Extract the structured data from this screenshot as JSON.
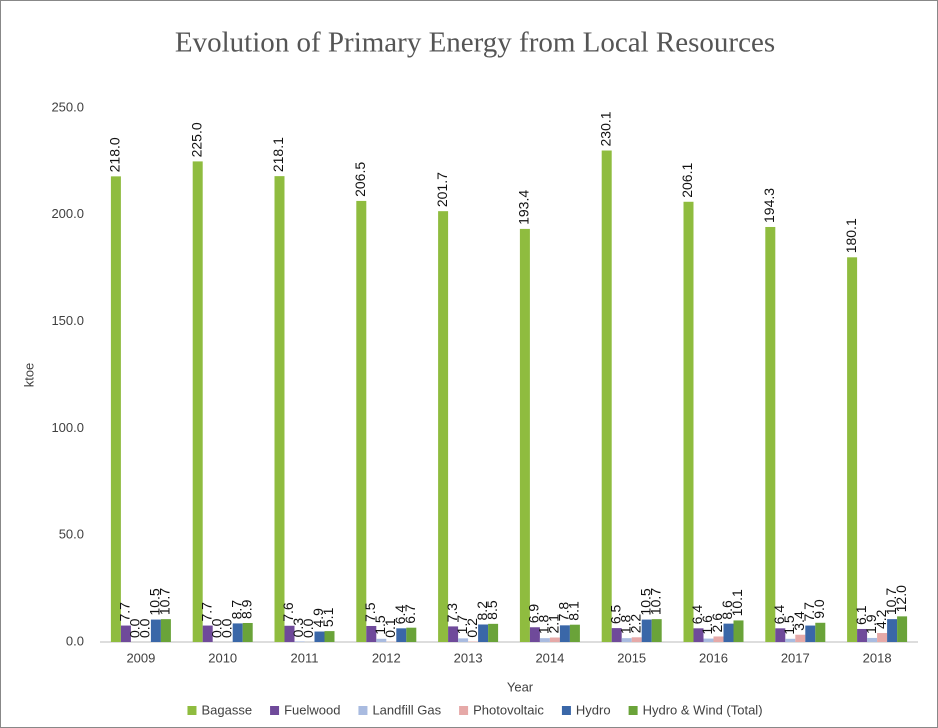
{
  "chart_data": {
    "type": "bar",
    "title": "Evolution of Primary Energy from Local Resources",
    "x_label": "Year",
    "y_label": "ktoe",
    "categories": [
      "2009",
      "2010",
      "2011",
      "2012",
      "2013",
      "2014",
      "2015",
      "2016",
      "2017",
      "2018"
    ],
    "series": [
      {
        "name": "Bagasse",
        "color": "#8fbc3f",
        "values": [
          218.0,
          225.0,
          218.1,
          206.5,
          201.7,
          193.4,
          230.1,
          206.1,
          194.3,
          180.1
        ],
        "value_labels": [
          "218.0",
          "225.0",
          "218.1",
          "206.5",
          "201.7",
          "193.4",
          "230.1",
          "206.1",
          "194.3",
          "180.1"
        ]
      },
      {
        "name": "Fuelwood",
        "color": "#6f4a9a",
        "values": [
          7.7,
          7.7,
          7.6,
          7.5,
          7.3,
          6.9,
          6.5,
          6.4,
          6.4,
          6.1
        ],
        "value_labels": [
          "7.7",
          "7.7",
          "7.6",
          "7.5",
          "7.3",
          "6.9",
          "6.5",
          "6.4",
          "6.4",
          "6.1"
        ]
      },
      {
        "name": "Landfill Gas",
        "color": "#a9bbe0",
        "values": [
          0.0,
          0.0,
          0.3,
          1.5,
          1.7,
          1.8,
          1.8,
          1.6,
          1.5,
          1.9
        ],
        "value_labels": [
          "0.0",
          "0.0",
          "0.3",
          "1.5",
          "1.7",
          "1.8",
          "1.8",
          "1.6",
          "1.5",
          "1.9"
        ]
      },
      {
        "name": "Photovoltaic",
        "color": "#e6a9a8",
        "values": [
          0.0,
          0.0,
          0.0,
          0.1,
          0.2,
          2.1,
          2.2,
          2.6,
          3.4,
          4.2
        ],
        "value_labels": [
          "0.0",
          "0.0",
          "0.0",
          "0.1",
          "0.2",
          "2.1",
          "2.2",
          "2.6",
          "3.4",
          "4.2"
        ]
      },
      {
        "name": "Hydro",
        "color": "#3a67a8",
        "values": [
          10.5,
          8.7,
          4.9,
          6.4,
          8.2,
          7.8,
          10.5,
          8.6,
          7.7,
          10.7
        ],
        "value_labels": [
          "10.5",
          "8.7",
          "4.9",
          "6.4",
          "8.2",
          "7.8",
          "10.5",
          "8.6",
          "7.7",
          "10.7"
        ]
      },
      {
        "name": "Hydro & Wind (Total)",
        "color": "#6aa339",
        "values": [
          10.7,
          8.9,
          5.1,
          6.7,
          8.5,
          8.1,
          10.7,
          10.1,
          9.0,
          12.0
        ],
        "value_labels": [
          "10.7",
          "8.9",
          "5.1",
          "6.7",
          "8.5",
          "8.1",
          "10.7",
          "10.1",
          "9.0",
          "12.0"
        ]
      }
    ],
    "ylim": [
      0,
      250
    ],
    "yticks": [
      {
        "value": 0,
        "label": "0.0"
      },
      {
        "value": 50,
        "label": "50.0"
      },
      {
        "value": 100,
        "label": "100.0"
      },
      {
        "value": 150,
        "label": "150.0"
      },
      {
        "value": 200,
        "label": "200.0"
      },
      {
        "value": 250,
        "label": "250.0"
      }
    ],
    "grid": false,
    "legend": "bottom"
  }
}
